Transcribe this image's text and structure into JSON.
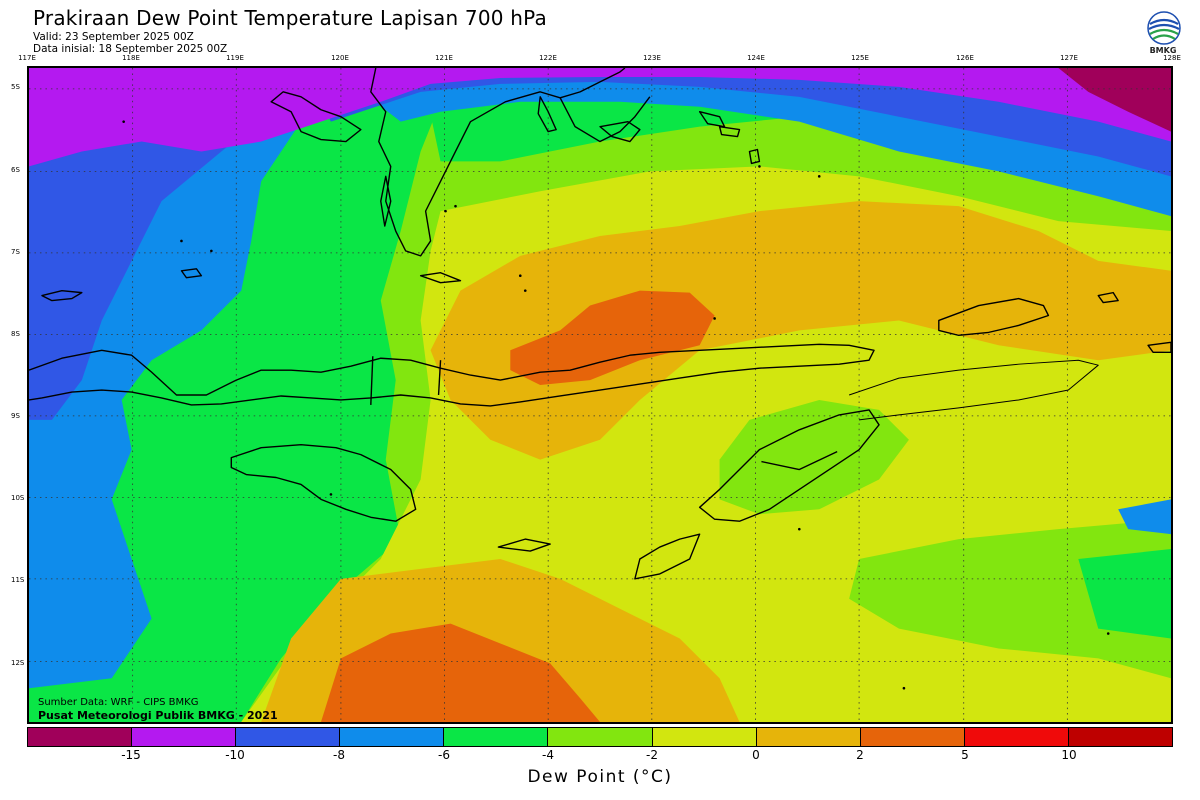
{
  "header": {
    "title": "Prakiraan Dew Point Temperature Lapisan 700 hPa",
    "valid": "Valid: 23 September 2025 00Z",
    "init": "Data inisial: 18 September 2025 00Z",
    "logo_text": "BMKG"
  },
  "axes": {
    "lon_labels": [
      "117E",
      "118E",
      "119E",
      "120E",
      "121E",
      "122E",
      "123E",
      "124E",
      "125E",
      "126E",
      "127E",
      "128E"
    ],
    "lat_labels": [
      "5S",
      "6S",
      "7S",
      "8S",
      "9S",
      "10S",
      "11S",
      "12S"
    ]
  },
  "credits": {
    "source": "Sumber Data: WRF - CIPS BMKG",
    "office": "Pusat Meteorologi Publik BMKG - 2021"
  },
  "legend": {
    "title": "Dew Point (°C)",
    "tick_labels": [
      "-15",
      "-10",
      "-8",
      "-6",
      "-4",
      "-2",
      "0",
      "2",
      "5",
      "10"
    ],
    "colors": [
      "#a0005a",
      "#b419f0",
      "#3057e6",
      "#0f8ceb",
      "#0ae646",
      "#82e60f",
      "#d2e60f",
      "#e6b40a",
      "#e6640a",
      "#f00a0a",
      "#be0000"
    ]
  },
  "colors": {
    "grid_line": "#333333",
    "coast_line": "#000000"
  }
}
